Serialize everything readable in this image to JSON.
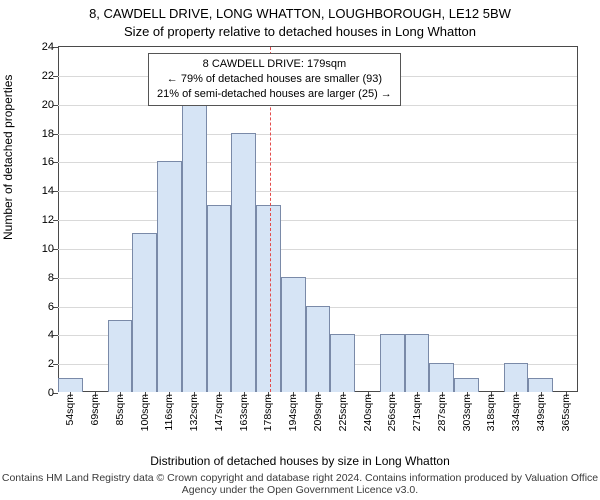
{
  "title_main": "8, CAWDELL DRIVE, LONG WHATTON, LOUGHBOROUGH, LE12 5BW",
  "title_sub": "Size of property relative to detached houses in Long Whatton",
  "ylabel": "Number of detached properties",
  "xlabel": "Distribution of detached houses by size in Long Whatton",
  "footer": "Contains HM Land Registry data © Crown copyright and database right 2024. Contains information produced by Valuation Office Agency under the Open Government Licence v3.0.",
  "annotation": {
    "line1": "8 CAWDELL DRIVE: 179sqm",
    "line2": "← 79% of detached houses are smaller (93)",
    "line3": "21% of semi-detached houses are larger (25) →"
  },
  "chart": {
    "type": "histogram",
    "ymin": 0,
    "ymax": 24,
    "ytick_step": 2,
    "xcategories": [
      "54sqm",
      "69sqm",
      "85sqm",
      "100sqm",
      "116sqm",
      "132sqm",
      "147sqm",
      "163sqm",
      "178sqm",
      "194sqm",
      "209sqm",
      "225sqm",
      "240sqm",
      "256sqm",
      "271sqm",
      "287sqm",
      "303sqm",
      "318sqm",
      "334sqm",
      "349sqm",
      "365sqm"
    ],
    "values": [
      1,
      0,
      5,
      11,
      16,
      20,
      13,
      18,
      13,
      8,
      6,
      4,
      0,
      4,
      4,
      2,
      1,
      0,
      2,
      1,
      0
    ],
    "bar_color": "#d6e4f5",
    "bar_border": "#7a8aa8",
    "bar_width_ratio": 1.0,
    "grid_color": "#d9d9d9",
    "background_color": "#ffffff",
    "axis_color": "#4a4a4a",
    "refline_x_value": 179,
    "refline_color": "#e34b4b",
    "refline_dash": "3,3",
    "title_fontsize": 13,
    "label_fontsize": 12,
    "tick_fontsize": 11,
    "annot_fontsize": 11
  }
}
